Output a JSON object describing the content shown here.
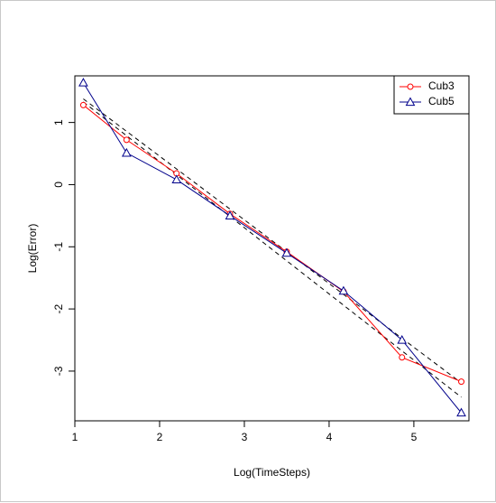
{
  "chart_data": {
    "type": "line",
    "title": "",
    "xlabel": "Log(TimeSteps)",
    "ylabel": "Log(Error)",
    "xlim": [
      1.0,
      5.65
    ],
    "ylim": [
      -3.8,
      1.75
    ],
    "x_ticks": [
      1,
      2,
      3,
      4,
      5
    ],
    "x_tick_labels": [
      "1",
      "2",
      "3",
      "4",
      "5"
    ],
    "y_ticks": [
      1,
      0,
      -1,
      -2,
      -3
    ],
    "y_tick_labels": [
      "1",
      "0",
      "-1",
      "-2",
      "-3"
    ],
    "grid": false,
    "legend_position": "top-right",
    "series": [
      {
        "name": "Cub3",
        "color": "#ff0000",
        "marker": "circle",
        "x": [
          1.1,
          1.61,
          2.2,
          2.83,
          3.5,
          4.17,
          4.86,
          5.56
        ],
        "y": [
          1.28,
          0.72,
          0.18,
          -0.47,
          -1.08,
          -1.72,
          -2.78,
          -3.17
        ]
      },
      {
        "name": "Cub5",
        "color": "#00008b",
        "marker": "triangle",
        "x": [
          1.1,
          1.61,
          2.2,
          2.83,
          3.5,
          4.17,
          4.86,
          5.56
        ],
        "y": [
          1.64,
          0.51,
          0.08,
          -0.5,
          -1.1,
          -1.71,
          -2.5,
          -3.67
        ]
      }
    ],
    "fit_lines": [
      {
        "series": "Cub3",
        "color": "#000000",
        "style": "dashed",
        "x": [
          1.1,
          5.56
        ],
        "y": [
          1.38,
          -3.19
        ]
      },
      {
        "series": "Cub5",
        "color": "#000000",
        "style": "dashed",
        "x": [
          1.1,
          5.56
        ],
        "y": [
          1.33,
          -3.42
        ]
      }
    ]
  }
}
